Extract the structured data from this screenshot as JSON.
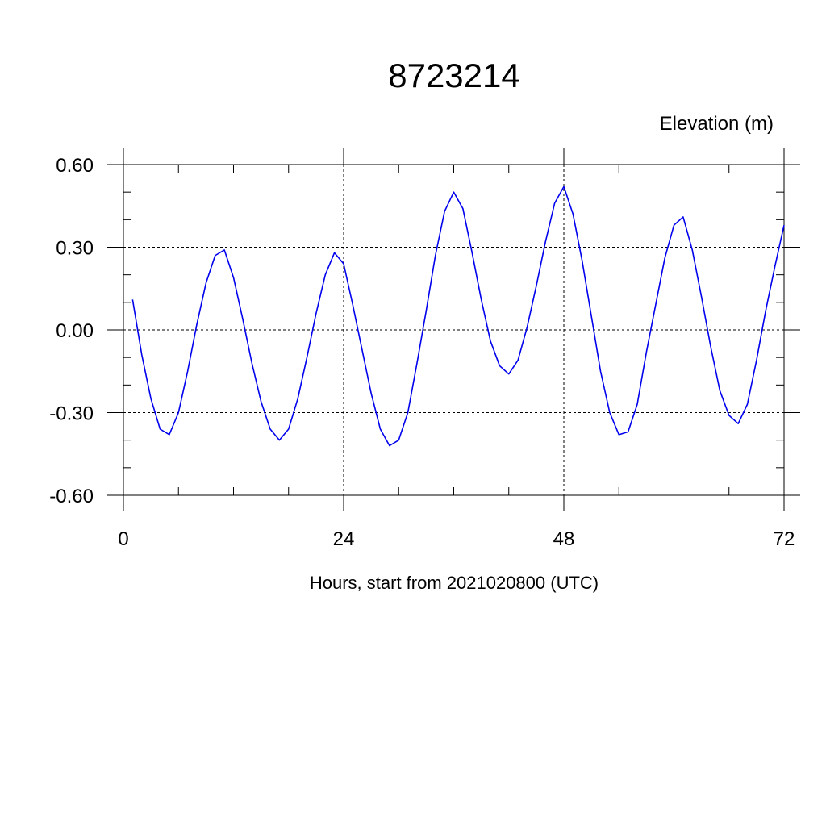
{
  "chart_data": {
    "type": "line",
    "title": "8723214",
    "ylabel": "Elevation (m)",
    "xlabel": "Hours, start from 2021020800 (UTC)",
    "xlim": [
      0,
      72
    ],
    "ylim": [
      -0.6,
      0.6
    ],
    "x_ticks": [
      0,
      24,
      48,
      72
    ],
    "x_tick_labels": [
      "0",
      "24",
      "48",
      "72"
    ],
    "y_ticks": [
      -0.6,
      -0.3,
      0.0,
      0.3,
      0.6
    ],
    "y_tick_labels": [
      "-0.60",
      "-0.30",
      "0.00",
      "0.30",
      "0.60"
    ],
    "grid": true,
    "colors": {
      "series": "#0000ee",
      "grid": "#000000",
      "axis": "#000000"
    },
    "series": [
      {
        "x": [
          1,
          2,
          3,
          4,
          5,
          6,
          7,
          8,
          9,
          10,
          11,
          12,
          13,
          14,
          15,
          16,
          17,
          18,
          19,
          20,
          21,
          22,
          23,
          24,
          25,
          26,
          27,
          28,
          29,
          30,
          31,
          32,
          33,
          34,
          35,
          36,
          37,
          38,
          39,
          40,
          41,
          42,
          43,
          44,
          45,
          46,
          47,
          48,
          49,
          50,
          51,
          52,
          53,
          54,
          55,
          56,
          57,
          58,
          59,
          60,
          61,
          62,
          63,
          64,
          65,
          66,
          67,
          68,
          69,
          70,
          71,
          72
        ],
        "values": [
          0.11,
          -0.09,
          -0.25,
          -0.36,
          -0.38,
          -0.3,
          -0.15,
          0.02,
          0.17,
          0.27,
          0.29,
          0.19,
          0.04,
          -0.12,
          -0.26,
          -0.36,
          -0.4,
          -0.36,
          -0.25,
          -0.1,
          0.06,
          0.2,
          0.28,
          0.24,
          0.09,
          -0.07,
          -0.23,
          -0.36,
          -0.42,
          -0.4,
          -0.3,
          -0.12,
          0.07,
          0.27,
          0.43,
          0.5,
          0.44,
          0.28,
          0.11,
          -0.04,
          -0.13,
          -0.16,
          -0.11,
          0.01,
          0.16,
          0.32,
          0.46,
          0.52,
          0.42,
          0.25,
          0.05,
          -0.15,
          -0.3,
          -0.38,
          -0.37,
          -0.27,
          -0.08,
          0.09,
          0.26,
          0.38,
          0.41,
          0.29,
          0.12,
          -0.06,
          -0.22,
          -0.31,
          -0.34,
          -0.27,
          -0.11,
          0.07,
          0.23,
          0.38
        ]
      }
    ]
  }
}
